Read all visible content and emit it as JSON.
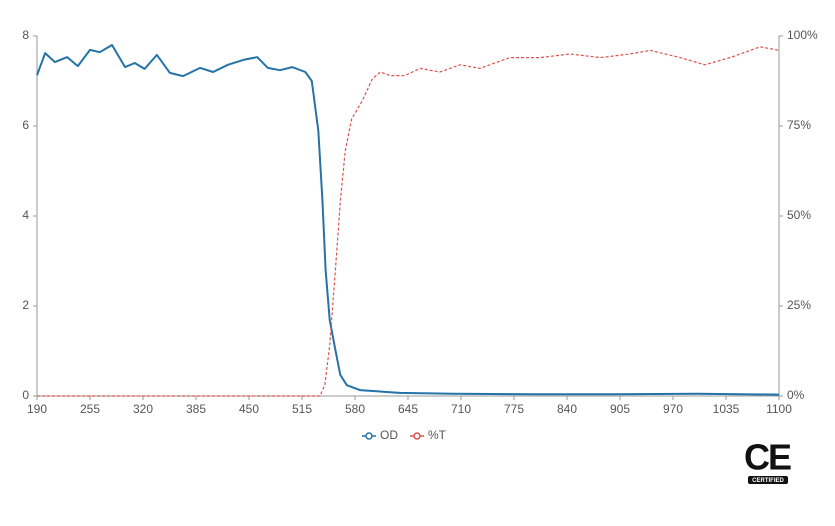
{
  "chart_data": {
    "type": "line",
    "xlim": [
      190,
      1100
    ],
    "xticks": [
      190,
      255,
      320,
      385,
      450,
      515,
      580,
      645,
      710,
      775,
      840,
      905,
      970,
      1035,
      1100
    ],
    "ylim": [
      0,
      8
    ],
    "yticks": [
      0,
      2,
      4,
      6,
      8
    ],
    "y2lim": [
      0,
      100
    ],
    "y2ticks": [
      {
        "value": 0,
        "label": "0%"
      },
      {
        "value": 25,
        "label": "25%"
      },
      {
        "value": 50,
        "label": "50%"
      },
      {
        "value": 75,
        "label": "75%"
      },
      {
        "value": 100,
        "label": "100%"
      }
    ],
    "legend": "bottom",
    "series": [
      {
        "name": "OD",
        "color": "#2473a8",
        "dashed": false,
        "x": [
          190,
          200,
          212,
          227,
          240,
          255,
          267,
          282,
          298,
          310,
          322,
          337,
          353,
          369,
          390,
          406,
          424,
          443,
          460,
          473,
          488,
          503,
          519,
          527,
          535,
          540,
          544,
          549,
          556,
          562,
          570,
          586,
          635,
          700,
          800,
          900,
          1000,
          1100
        ],
        "values": [
          7.13,
          7.62,
          7.42,
          7.53,
          7.33,
          7.69,
          7.64,
          7.8,
          7.31,
          7.4,
          7.27,
          7.58,
          7.18,
          7.11,
          7.29,
          7.2,
          7.36,
          7.47,
          7.53,
          7.29,
          7.24,
          7.31,
          7.2,
          7.0,
          5.9,
          4.36,
          2.8,
          1.69,
          1.02,
          0.47,
          0.24,
          0.13,
          0.07,
          0.05,
          0.04,
          0.04,
          0.05,
          0.03
        ]
      },
      {
        "name": "%T",
        "color": "#d9534f",
        "dashed": true,
        "axis": "y2",
        "x": [
          190,
          537,
          543,
          549,
          556,
          562,
          568,
          576,
          589,
          601,
          611,
          623,
          641,
          660,
          684,
          709,
          733,
          770,
          807,
          844,
          881,
          917,
          942,
          979,
          1009,
          1040,
          1077,
          1100
        ],
        "values": [
          0,
          0,
          3,
          14,
          35,
          54,
          68,
          77,
          82,
          88,
          90,
          89,
          89,
          91,
          90,
          92,
          91,
          94,
          94,
          95,
          94,
          95,
          96,
          94,
          92,
          94,
          97,
          96
        ]
      }
    ]
  },
  "badge": {
    "mark": "CE",
    "label": "CERTIFIED"
  }
}
